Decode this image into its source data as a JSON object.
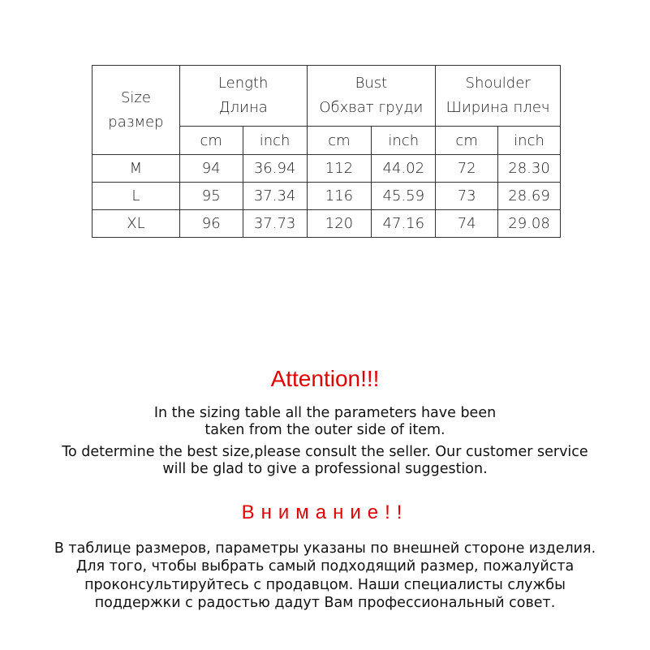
{
  "table": {
    "size_header": [
      "Size",
      "размер"
    ],
    "groups": [
      {
        "en": "Length",
        "ru": "Длина"
      },
      {
        "en": "Bust",
        "ru": "Обхват груди"
      },
      {
        "en": "Shoulder",
        "ru": "Ширина плеч"
      }
    ],
    "units": [
      "cm",
      "inch",
      "cm",
      "inch",
      "cm",
      "inch"
    ],
    "rows": [
      [
        "M",
        "94",
        "36.94",
        "112",
        "44.02",
        "72",
        "28.30"
      ],
      [
        "L",
        "95",
        "37.34",
        "116",
        "45.59",
        "73",
        "28.69"
      ],
      [
        "XL",
        "96",
        "37.73",
        "120",
        "47.16",
        "74",
        "29.08"
      ]
    ]
  },
  "attention_en": {
    "title": "Attention!!!",
    "lines": [
      "In the sizing table all the parameters have been",
      "taken from the outer side of item.",
      "To determine the best size,please consult the seller. Our customer service",
      "will be glad to give a professional suggestion."
    ]
  },
  "attention_ru": {
    "title": "Внимание!!",
    "lines": [
      "В таблице размеров, параметры указаны по внешней стороне изделия.",
      "Для того, чтобы выбрать самый подходящий размер, пожалуйста",
      "проконсультируйтесь с продавцом. Наши специалисты службы",
      "поддержки с радостью дадут Вам профессиональный совет."
    ]
  },
  "colors": {
    "accent_red": "#e00000",
    "text": "#111111"
  }
}
